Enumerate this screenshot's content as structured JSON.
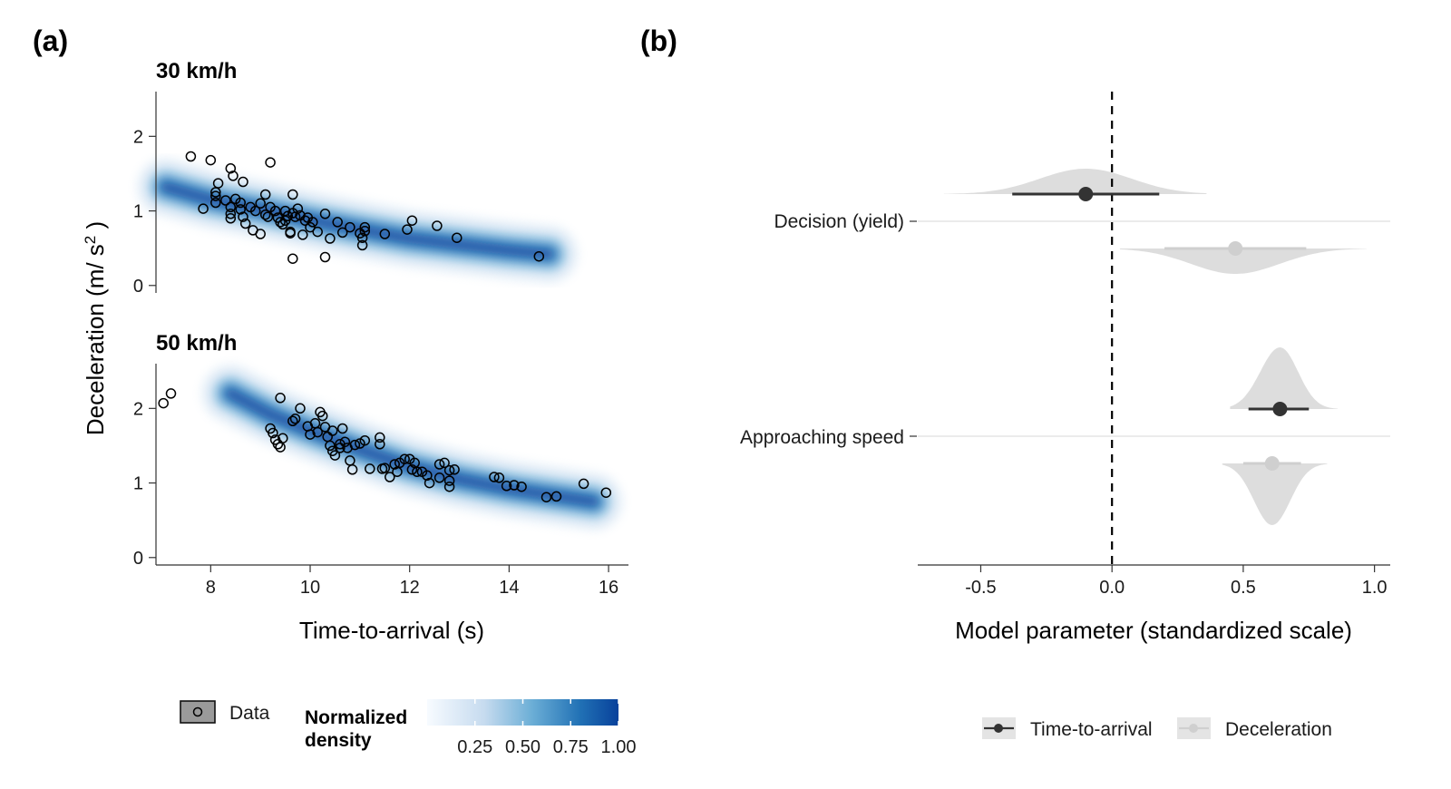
{
  "panel_a": {
    "label": "(a)",
    "facets": [
      {
        "title": "30 km/h"
      },
      {
        "title": "50 km/h"
      }
    ],
    "xlabel": "Time-to-arrival (s)",
    "ylabel_main": "Deceleration (m/ s",
    "ylabel_sup": "2",
    "ylabel_end": " )",
    "legend": {
      "data_label": "Data",
      "density_title_line1": "Normalized",
      "density_title_line2": "density",
      "density_ticks": [
        "0.25",
        "0.50",
        "0.75",
        "1.00"
      ],
      "colors": [
        "#ffffff",
        "#c6dbef",
        "#6baed6",
        "#2171b5",
        "#08419b"
      ]
    }
  },
  "panel_b": {
    "label": "(b)",
    "xlabel": "Model parameter (standardized scale)",
    "legend": [
      {
        "name": "Time-to-arrival",
        "color": "#333333"
      },
      {
        "name": "Deceleration",
        "color": "#cfcfcf"
      }
    ]
  },
  "chart_data": [
    {
      "type": "scatter",
      "title": "30 km/h",
      "xlabel": "Time-to-arrival (s)",
      "ylabel": "Deceleration (m/ s2 )",
      "xlim": [
        6.9,
        16.4
      ],
      "ylim": [
        -0.1,
        2.6
      ],
      "xticks": [
        8,
        10,
        12,
        14,
        16
      ],
      "yticks": [
        0,
        1,
        2
      ],
      "density_ridge": [
        [
          7.1,
          1.32
        ],
        [
          8,
          1.15
        ],
        [
          9,
          1.02
        ],
        [
          10,
          0.88
        ],
        [
          11,
          0.75
        ],
        [
          12,
          0.63
        ],
        [
          13,
          0.55
        ],
        [
          14,
          0.47
        ],
        [
          14.8,
          0.42
        ]
      ],
      "points": [
        [
          7.6,
          1.73
        ],
        [
          8.0,
          1.68
        ],
        [
          8.1,
          1.25
        ],
        [
          8.1,
          1.2
        ],
        [
          8.15,
          1.37
        ],
        [
          8.1,
          1.11
        ],
        [
          7.85,
          1.03
        ],
        [
          8.4,
          1.57
        ],
        [
          8.45,
          1.47
        ],
        [
          8.65,
          1.39
        ],
        [
          8.3,
          1.14
        ],
        [
          8.4,
          1.05
        ],
        [
          8.4,
          0.96
        ],
        [
          8.4,
          0.9
        ],
        [
          8.5,
          1.16
        ],
        [
          8.6,
          1.11
        ],
        [
          8.6,
          1.02
        ],
        [
          8.65,
          0.92
        ],
        [
          8.7,
          0.83
        ],
        [
          8.8,
          1.05
        ],
        [
          8.9,
          1.0
        ],
        [
          8.85,
          0.74
        ],
        [
          9.0,
          1.1
        ],
        [
          9.0,
          0.69
        ],
        [
          9.1,
          1.22
        ],
        [
          9.1,
          0.95
        ],
        [
          9.15,
          0.92
        ],
        [
          9.2,
          1.05
        ],
        [
          9.2,
          1.65
        ],
        [
          9.3,
          1.0
        ],
        [
          9.35,
          0.91
        ],
        [
          9.4,
          0.85
        ],
        [
          9.45,
          0.82
        ],
        [
          9.5,
          1.0
        ],
        [
          9.5,
          0.87
        ],
        [
          9.55,
          0.93
        ],
        [
          9.6,
          0.72
        ],
        [
          9.6,
          0.7
        ],
        [
          9.65,
          1.22
        ],
        [
          9.65,
          0.97
        ],
        [
          9.7,
          0.92
        ],
        [
          9.75,
          1.03
        ],
        [
          9.8,
          0.94
        ],
        [
          9.85,
          0.68
        ],
        [
          9.9,
          0.87
        ],
        [
          9.95,
          0.91
        ],
        [
          10.0,
          0.78
        ],
        [
          10.05,
          0.85
        ],
        [
          10.15,
          0.72
        ],
        [
          10.3,
          0.96
        ],
        [
          10.4,
          0.63
        ],
        [
          10.55,
          0.85
        ],
        [
          10.65,
          0.71
        ],
        [
          10.8,
          0.78
        ],
        [
          11.0,
          0.7
        ],
        [
          11.05,
          0.64
        ],
        [
          11.05,
          0.54
        ],
        [
          11.1,
          0.73
        ],
        [
          11.1,
          0.78
        ],
        [
          11.5,
          0.69
        ],
        [
          11.95,
          0.75
        ],
        [
          12.05,
          0.87
        ],
        [
          12.55,
          0.8
        ],
        [
          12.95,
          0.64
        ],
        [
          9.65,
          0.36
        ],
        [
          10.3,
          0.38
        ],
        [
          14.6,
          0.39
        ]
      ]
    },
    {
      "type": "scatter",
      "title": "50 km/h",
      "xlabel": "Time-to-arrival (s)",
      "ylabel": "Deceleration (m/ s2 )",
      "xlim": [
        6.9,
        16.4
      ],
      "ylim": [
        -0.1,
        2.6
      ],
      "xticks": [
        8,
        10,
        12,
        14,
        16
      ],
      "yticks": [
        0,
        1,
        2
      ],
      "density_ridge": [
        [
          8.4,
          2.2
        ],
        [
          9.2,
          1.92
        ],
        [
          10,
          1.7
        ],
        [
          11,
          1.45
        ],
        [
          12,
          1.22
        ],
        [
          13,
          1.05
        ],
        [
          14,
          0.92
        ],
        [
          15,
          0.82
        ],
        [
          15.7,
          0.75
        ]
      ],
      "points": [
        [
          7.05,
          2.07
        ],
        [
          7.2,
          2.2
        ],
        [
          9.4,
          2.14
        ],
        [
          9.2,
          1.73
        ],
        [
          9.25,
          1.67
        ],
        [
          9.3,
          1.58
        ],
        [
          9.35,
          1.52
        ],
        [
          9.4,
          1.48
        ],
        [
          9.45,
          1.6
        ],
        [
          9.65,
          1.83
        ],
        [
          9.7,
          1.86
        ],
        [
          9.8,
          2.0
        ],
        [
          9.95,
          1.76
        ],
        [
          10.0,
          1.65
        ],
        [
          10.1,
          1.8
        ],
        [
          10.15,
          1.68
        ],
        [
          10.2,
          1.95
        ],
        [
          10.25,
          1.9
        ],
        [
          10.3,
          1.75
        ],
        [
          10.35,
          1.62
        ],
        [
          10.45,
          1.7
        ],
        [
          10.4,
          1.5
        ],
        [
          10.45,
          1.43
        ],
        [
          10.5,
          1.37
        ],
        [
          10.6,
          1.52
        ],
        [
          10.6,
          1.47
        ],
        [
          10.65,
          1.73
        ],
        [
          10.7,
          1.55
        ],
        [
          10.75,
          1.47
        ],
        [
          10.8,
          1.3
        ],
        [
          10.85,
          1.18
        ],
        [
          10.9,
          1.51
        ],
        [
          11.0,
          1.53
        ],
        [
          11.1,
          1.57
        ],
        [
          11.2,
          1.19
        ],
        [
          11.4,
          1.52
        ],
        [
          11.4,
          1.61
        ],
        [
          11.45,
          1.19
        ],
        [
          11.5,
          1.2
        ],
        [
          11.6,
          1.08
        ],
        [
          11.7,
          1.25
        ],
        [
          11.75,
          1.15
        ],
        [
          11.8,
          1.27
        ],
        [
          11.9,
          1.32
        ],
        [
          12.0,
          1.32
        ],
        [
          12.05,
          1.18
        ],
        [
          12.1,
          1.27
        ],
        [
          12.15,
          1.15
        ],
        [
          12.25,
          1.15
        ],
        [
          12.35,
          1.1
        ],
        [
          12.4,
          1.0
        ],
        [
          12.6,
          1.07
        ],
        [
          12.6,
          1.25
        ],
        [
          12.7,
          1.27
        ],
        [
          12.8,
          1.03
        ],
        [
          12.8,
          0.95
        ],
        [
          12.8,
          1.17
        ],
        [
          13.7,
          1.08
        ],
        [
          13.8,
          1.07
        ],
        [
          13.95,
          0.96
        ],
        [
          14.1,
          0.97
        ],
        [
          14.25,
          0.95
        ],
        [
          14.75,
          0.81
        ],
        [
          14.95,
          0.82
        ],
        [
          15.5,
          0.99
        ],
        [
          15.95,
          0.87
        ],
        [
          12.9,
          1.18
        ]
      ]
    },
    {
      "type": "scatter",
      "xlabel": "Model parameter (standardized scale)",
      "xlim": [
        -0.74,
        1.06
      ],
      "xticks": [
        -0.5,
        0.0,
        0.5,
        1.0
      ],
      "tick_labels": [
        "-0.5",
        "0.0",
        "0.5",
        "1.0"
      ],
      "reference_line": 0.0,
      "categories": [
        "Decision (yield)",
        "Approaching speed"
      ],
      "series": [
        {
          "name": "Time-to-arrival",
          "color": "#333333",
          "estimates": [
            {
              "category": "Decision (yield)",
              "point": -0.1,
              "lower": -0.38,
              "upper": 0.18,
              "dist_min": -0.64,
              "dist_max": 0.36
            },
            {
              "category": "Approaching speed",
              "point": 0.64,
              "lower": 0.52,
              "upper": 0.75,
              "dist_min": 0.45,
              "dist_max": 0.86
            }
          ]
        },
        {
          "name": "Deceleration",
          "color": "#cfcfcf",
          "estimates": [
            {
              "category": "Decision (yield)",
              "point": 0.47,
              "lower": 0.2,
              "upper": 0.74,
              "dist_min": 0.03,
              "dist_max": 0.97
            },
            {
              "category": "Approaching speed",
              "point": 0.61,
              "lower": 0.5,
              "upper": 0.72,
              "dist_min": 0.42,
              "dist_max": 0.82
            }
          ]
        }
      ]
    }
  ]
}
